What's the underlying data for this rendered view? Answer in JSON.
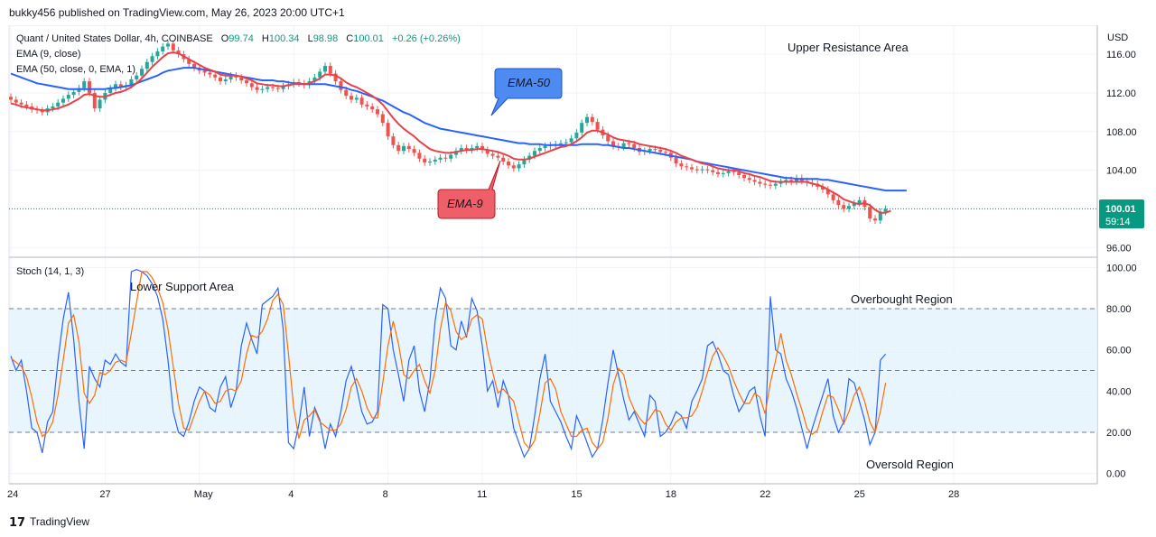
{
  "header": {
    "publisher_line": "bukky456 published on TradingView.com, May 26, 2023 20:00 UTC+1"
  },
  "legend": {
    "symbol": "Quant / United States Dollar, 4h, COINBASE",
    "o_label": "O",
    "o_value": "99.74",
    "h_label": "H",
    "h_value": "100.34",
    "l_label": "L",
    "l_value": "98.98",
    "c_label": "C",
    "c_value": "100.01",
    "change": "+0.26 (+0.26%)",
    "ema9": "EMA (9, close)",
    "ema50": "EMA (50, close, 0, EMA, 1)",
    "stoch": "Stoch (14, 1, 3)"
  },
  "annotations": {
    "upper_resistance": "Upper Resistance Area",
    "lower_support": "Lower Support Area",
    "overbought": "Overbought Region",
    "oversold": "Oversold Region",
    "ema50_callout": "EMA-50",
    "ema9_callout": "EMA-9"
  },
  "price_axis": {
    "currency": "USD",
    "last_price": "100.01",
    "countdown": "59:14"
  },
  "footer": {
    "logo_text": "TradingView"
  },
  "colors": {
    "candle_up": "#26a69a",
    "candle_down": "#ef5350",
    "ema9": "#e8414a",
    "ema50": "#2962ff",
    "stoch_k": "#2962ff",
    "stoch_d": "#ff6d00",
    "stoch_band": "#e3f2fd",
    "last_price_tag": "#089981"
  },
  "chart_data": [
    {
      "type": "candlestick",
      "title": "Quant / United States Dollar, 4h, COINBASE",
      "ylabel": "USD",
      "ylim": [
        95,
        119
      ],
      "y_ticks": [
        96,
        100,
        104,
        108,
        112,
        116
      ],
      "x_ticks": [
        "24",
        "27",
        "May",
        "4",
        "8",
        "11",
        "15",
        "18",
        "22",
        "25",
        "28"
      ],
      "x_tick_index": [
        0,
        18,
        36,
        54,
        72,
        90,
        108,
        126,
        144,
        162,
        180
      ],
      "last_close": 100.01,
      "close": [
        111.3,
        111.0,
        110.8,
        110.6,
        110.3,
        110.2,
        110.0,
        110.4,
        110.6,
        111.0,
        111.4,
        111.8,
        112.1,
        112.5,
        113.2,
        112.0,
        110.4,
        111.3,
        112.0,
        112.5,
        112.9,
        112.6,
        112.8,
        113.4,
        113.8,
        114.5,
        115.2,
        115.8,
        116.3,
        116.8,
        117.1,
        116.4,
        116.0,
        115.5,
        115.0,
        114.6,
        114.3,
        114.1,
        113.9,
        113.6,
        113.2,
        113.4,
        113.8,
        113.6,
        113.3,
        113.0,
        112.6,
        112.3,
        112.4,
        112.6,
        112.5,
        112.4,
        112.7,
        112.9,
        113.1,
        113.0,
        112.8,
        113.2,
        113.6,
        114.2,
        114.8,
        114.0,
        113.2,
        112.3,
        111.7,
        111.3,
        111.5,
        110.8,
        110.6,
        110.3,
        109.8,
        108.9,
        107.5,
        106.6,
        106.0,
        106.5,
        106.2,
        105.8,
        105.2,
        104.8,
        104.9,
        105.1,
        105.3,
        105.2,
        105.6,
        106.0,
        106.3,
        106.1,
        106.3,
        106.5,
        106.1,
        105.7,
        105.5,
        105.3,
        104.9,
        104.5,
        104.2,
        104.6,
        105.1,
        105.5,
        106.0,
        106.3,
        106.5,
        106.6,
        106.7,
        106.8,
        106.9,
        107.3,
        107.9,
        108.9,
        109.5,
        109.0,
        108.2,
        107.6,
        107.0,
        106.5,
        106.4,
        106.8,
        106.7,
        106.3,
        105.9,
        106.0,
        106.2,
        106.1,
        105.9,
        105.8,
        105.3,
        104.7,
        104.4,
        104.3,
        104.1,
        104.0,
        104.1,
        104.0,
        103.8,
        103.6,
        103.7,
        103.9,
        103.8,
        103.5,
        103.2,
        103.0,
        102.8,
        102.6,
        102.5,
        102.4,
        102.6,
        102.8,
        103.0,
        102.8,
        103.2,
        102.9,
        102.7,
        102.6,
        102.3,
        102.0,
        101.5,
        100.9,
        100.4,
        100.0,
        100.3,
        100.6,
        100.9,
        100.2,
        99.0,
        98.8,
        99.7,
        100.0
      ]
    },
    {
      "type": "line",
      "title": "EMA (9, close)",
      "x_start_index": 0,
      "values": [
        110.9,
        110.8,
        110.6,
        110.5,
        110.4,
        110.3,
        110.2,
        110.2,
        110.3,
        110.4,
        110.6,
        110.8,
        111.1,
        111.4,
        111.8,
        111.9,
        111.7,
        111.6,
        111.6,
        111.8,
        112.0,
        112.1,
        112.3,
        112.6,
        113.0,
        113.5,
        114.1,
        114.7,
        115.2,
        115.7,
        116.1,
        116.2,
        116.1,
        115.8,
        115.5,
        115.2,
        114.9,
        114.6,
        114.4,
        114.2,
        113.9,
        113.8,
        113.8,
        113.8,
        113.7,
        113.5,
        113.3,
        113.0,
        112.9,
        112.8,
        112.8,
        112.7,
        112.7,
        112.8,
        112.9,
        112.9,
        112.9,
        113.0,
        113.2,
        113.5,
        113.9,
        113.9,
        113.8,
        113.5,
        113.1,
        112.8,
        112.6,
        112.3,
        112.0,
        111.7,
        111.3,
        110.8,
        110.1,
        109.4,
        108.8,
        108.3,
        107.9,
        107.5,
        107.0,
        106.6,
        106.2,
        106.0,
        105.9,
        105.8,
        105.8,
        105.9,
        106.0,
        106.1,
        106.1,
        106.2,
        106.2,
        106.1,
        106.0,
        105.9,
        105.7,
        105.5,
        105.2,
        105.1,
        105.1,
        105.2,
        105.4,
        105.6,
        105.8,
        106.0,
        106.2,
        106.4,
        106.5,
        106.7,
        107.0,
        107.4,
        107.9,
        108.1,
        108.1,
        107.9,
        107.7,
        107.4,
        107.2,
        107.1,
        107.0,
        106.9,
        106.7,
        106.6,
        106.5,
        106.4,
        106.3,
        106.2,
        106.0,
        105.8,
        105.5,
        105.3,
        105.1,
        104.9,
        104.7,
        104.6,
        104.4,
        104.2,
        104.1,
        104.0,
        104.0,
        103.9,
        103.7,
        103.6,
        103.4,
        103.3,
        103.1,
        102.9,
        102.8,
        102.8,
        102.8,
        102.8,
        102.8,
        102.8,
        102.8,
        102.6,
        102.5,
        102.3,
        102.0,
        101.7,
        101.4,
        101.0,
        100.8,
        100.6,
        100.5,
        100.6,
        100.4,
        99.9,
        99.6,
        99.6,
        99.8
      ]
    },
    {
      "type": "line",
      "title": "EMA (50, close, 0, EMA, 1)",
      "x_start_index": 0,
      "values": [
        114.0,
        113.8,
        113.6,
        113.4,
        113.2,
        113.0,
        112.9,
        112.8,
        112.7,
        112.6,
        112.5,
        112.4,
        112.4,
        112.4,
        112.4,
        112.4,
        112.4,
        112.4,
        112.4,
        112.5,
        112.5,
        112.6,
        112.7,
        112.8,
        113.0,
        113.2,
        113.4,
        113.6,
        113.8,
        114.1,
        114.3,
        114.4,
        114.5,
        114.6,
        114.6,
        114.6,
        114.5,
        114.4,
        114.3,
        114.2,
        114.1,
        114.0,
        113.9,
        113.8,
        113.7,
        113.6,
        113.5,
        113.4,
        113.3,
        113.3,
        113.3,
        113.2,
        113.2,
        113.1,
        113.0,
        113.0,
        112.9,
        112.9,
        112.9,
        112.9,
        112.9,
        112.8,
        112.7,
        112.6,
        112.5,
        112.3,
        112.2,
        112.0,
        111.8,
        111.6,
        111.4,
        111.2,
        110.9,
        110.6,
        110.3,
        110.0,
        109.8,
        109.5,
        109.2,
        108.9,
        108.7,
        108.5,
        108.3,
        108.2,
        108.1,
        108.0,
        107.9,
        107.8,
        107.7,
        107.6,
        107.5,
        107.4,
        107.3,
        107.2,
        107.1,
        107.0,
        106.9,
        106.8,
        106.8,
        106.7,
        106.7,
        106.7,
        106.6,
        106.6,
        106.6,
        106.6,
        106.6,
        106.6,
        106.6,
        106.7,
        106.7,
        106.7,
        106.7,
        106.6,
        106.6,
        106.5,
        106.4,
        106.3,
        106.3,
        106.2,
        106.1,
        106.0,
        105.9,
        105.8,
        105.7,
        105.6,
        105.5,
        105.4,
        105.3,
        105.2,
        105.1,
        104.9,
        104.8,
        104.7,
        104.6,
        104.5,
        104.4,
        104.3,
        104.2,
        104.1,
        104.0,
        103.9,
        103.8,
        103.7,
        103.6,
        103.5,
        103.4,
        103.3,
        103.2,
        103.2,
        103.1,
        103.1,
        103.1,
        103.1,
        103.1,
        103.0,
        103.0,
        102.9,
        102.8,
        102.7,
        102.6,
        102.5,
        102.4,
        102.3,
        102.2,
        102.1,
        102.0,
        101.9,
        101.9,
        101.9,
        101.9,
        101.9
      ]
    },
    {
      "type": "line",
      "title": "Stoch (14, 1, 3)",
      "ylim": [
        -5,
        105
      ],
      "y_ticks": [
        0,
        20,
        40,
        60,
        80,
        100
      ],
      "overbought": 80,
      "oversold": 20,
      "midline": 50,
      "k": [
        57,
        50,
        55,
        40,
        22,
        20,
        10,
        25,
        30,
        55,
        75,
        88,
        65,
        35,
        12,
        52,
        46,
        42,
        55,
        53,
        58,
        54,
        52,
        98,
        99,
        98,
        96,
        92,
        86,
        75,
        55,
        30,
        20,
        18,
        25,
        35,
        42,
        40,
        32,
        30,
        42,
        47,
        32,
        40,
        62,
        73,
        65,
        58,
        82,
        84,
        86,
        90,
        70,
        15,
        12,
        24,
        42,
        18,
        32,
        26,
        12,
        24,
        18,
        30,
        45,
        52,
        42,
        30,
        24,
        25,
        30,
        82,
        80,
        60,
        48,
        35,
        55,
        62,
        40,
        30,
        45,
        74,
        90,
        85,
        62,
        60,
        74,
        66,
        85,
        79,
        62,
        40,
        45,
        32,
        45,
        38,
        22,
        15,
        8,
        12,
        28,
        46,
        58,
        35,
        30,
        25,
        18,
        12,
        28,
        22,
        15,
        8,
        12,
        26,
        44,
        60,
        48,
        36,
        26,
        30,
        24,
        18,
        38,
        35,
        18,
        20,
        24,
        30,
        28,
        22,
        35,
        40,
        46,
        62,
        64,
        58,
        50,
        48,
        38,
        30,
        34,
        40,
        42,
        28,
        18,
        86,
        60,
        58,
        46,
        40,
        32,
        22,
        12,
        22,
        30,
        38,
        46,
        28,
        20,
        25,
        46,
        44,
        35,
        26,
        14,
        20,
        55,
        58
      ]
    },
    {
      "type": "line",
      "title": "Stoch %D",
      "d": [
        56,
        54,
        52,
        47,
        37,
        25,
        18,
        20,
        25,
        38,
        55,
        73,
        77,
        64,
        39,
        34,
        38,
        49,
        48,
        50,
        54,
        55,
        54,
        68,
        83,
        98,
        98,
        95,
        90,
        83,
        70,
        52,
        34,
        22,
        21,
        28,
        35,
        40,
        38,
        34,
        35,
        40,
        41,
        40,
        45,
        58,
        67,
        66,
        69,
        75,
        84,
        87,
        82,
        58,
        32,
        17,
        26,
        28,
        31,
        25,
        23,
        21,
        21,
        24,
        31,
        42,
        46,
        40,
        32,
        27,
        27,
        44,
        62,
        74,
        63,
        48,
        46,
        50,
        53,
        45,
        39,
        50,
        70,
        83,
        79,
        69,
        65,
        67,
        75,
        77,
        75,
        60,
        49,
        39,
        41,
        38,
        35,
        25,
        15,
        12,
        16,
        29,
        44,
        46,
        41,
        30,
        24,
        18,
        18,
        21,
        22,
        15,
        12,
        15,
        27,
        43,
        51,
        48,
        37,
        31,
        27,
        24,
        27,
        31,
        30,
        24,
        21,
        25,
        27,
        27,
        28,
        32,
        40,
        49,
        57,
        61,
        57,
        52,
        45,
        39,
        34,
        34,
        39,
        37,
        29,
        44,
        55,
        68,
        55,
        48,
        39,
        31,
        22,
        19,
        21,
        30,
        38,
        37,
        31,
        24,
        30,
        38,
        42,
        35,
        25,
        20,
        30,
        44
      ]
    }
  ]
}
